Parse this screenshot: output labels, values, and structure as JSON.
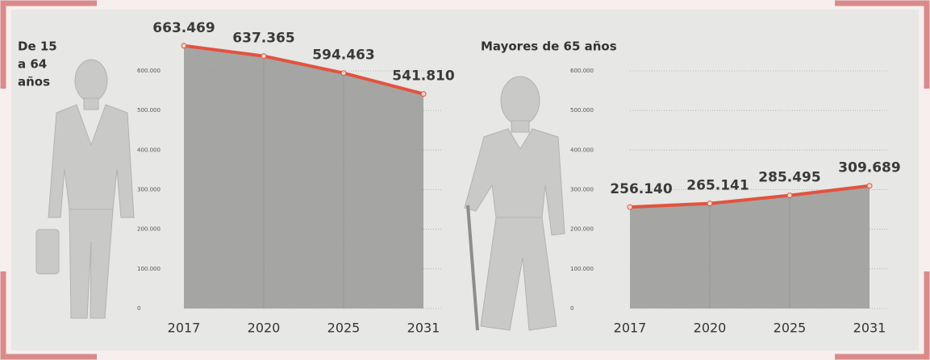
{
  "chart_data": [
    {
      "type": "area",
      "title": [
        "De 15",
        "a 64",
        "años"
      ],
      "categories": [
        "2017",
        "2020",
        "2025",
        "2031"
      ],
      "values": [
        663469,
        637365,
        594463,
        541810
      ],
      "value_labels": [
        "663.469",
        "637.365",
        "594.463",
        "541.810"
      ],
      "color": "#9d9d9b",
      "line_color": "#e2533f",
      "ylim": [
        0,
        600000
      ],
      "yticks": [
        0,
        {
          "value": 100000,
          "label": "100.000"
        },
        {
          "value": 200000,
          "label": "200.000"
        },
        {
          "value": 300000,
          "label": "300.000"
        },
        {
          "value": 400000,
          "label": "400.000"
        },
        {
          "value": 500000,
          "label": "500.000"
        },
        {
          "value": 600000,
          "label": "600.000"
        }
      ],
      "grid": true
    },
    {
      "type": "area",
      "title": [
        "Mayores de 65 años"
      ],
      "categories": [
        "2017",
        "2020",
        "2025",
        "2031"
      ],
      "values": [
        256140,
        265141,
        285495,
        309689
      ],
      "value_labels": [
        "256.140",
        "265.141",
        "285.495",
        "309.689"
      ],
      "color": "#9d9d9b",
      "line_color": "#e2533f",
      "ylim": [
        0,
        600000
      ],
      "yticks": [
        0,
        {
          "value": 100000,
          "label": "100.000"
        },
        {
          "value": 200000,
          "label": "200.000"
        },
        {
          "value": 300000,
          "label": "300.000"
        },
        {
          "value": 400000,
          "label": "400.000"
        },
        {
          "value": 500000,
          "label": "500.000"
        },
        {
          "value": 600000,
          "label": "600.000"
        }
      ],
      "grid": true
    }
  ]
}
